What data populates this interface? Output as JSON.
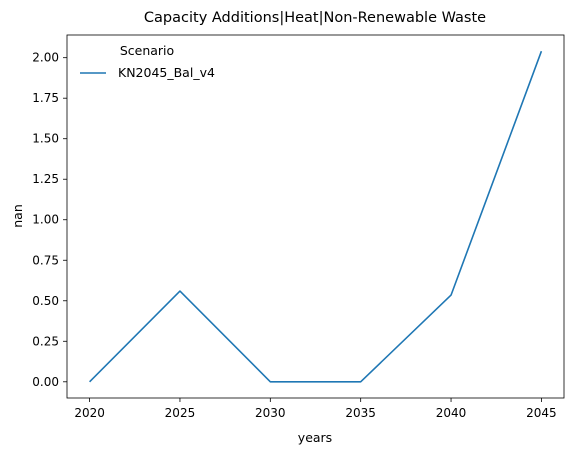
{
  "chart_data": {
    "type": "line",
    "title": "Capacity Additions|Heat|Non-Renewable Waste",
    "xlabel": "years",
    "ylabel": "nan",
    "x": [
      2020,
      2025,
      2030,
      2035,
      2040,
      2045
    ],
    "xticks": [
      "2020",
      "2025",
      "2030",
      "2035",
      "2040",
      "2045"
    ],
    "yticks": [
      "0.00",
      "0.25",
      "0.50",
      "0.75",
      "1.00",
      "1.25",
      "1.50",
      "1.75",
      "2.00"
    ],
    "ylim": [
      -0.1,
      2.14
    ],
    "xlim": [
      2018.75,
      2046.25
    ],
    "grid": false,
    "legend": {
      "title": "Scenario",
      "placement": "top-left"
    },
    "series": [
      {
        "name": "KN2045_Bal_v4",
        "color": "#1f77b4",
        "values": [
          0.0,
          0.56,
          0.0,
          0.0,
          0.535,
          2.04
        ]
      }
    ]
  }
}
